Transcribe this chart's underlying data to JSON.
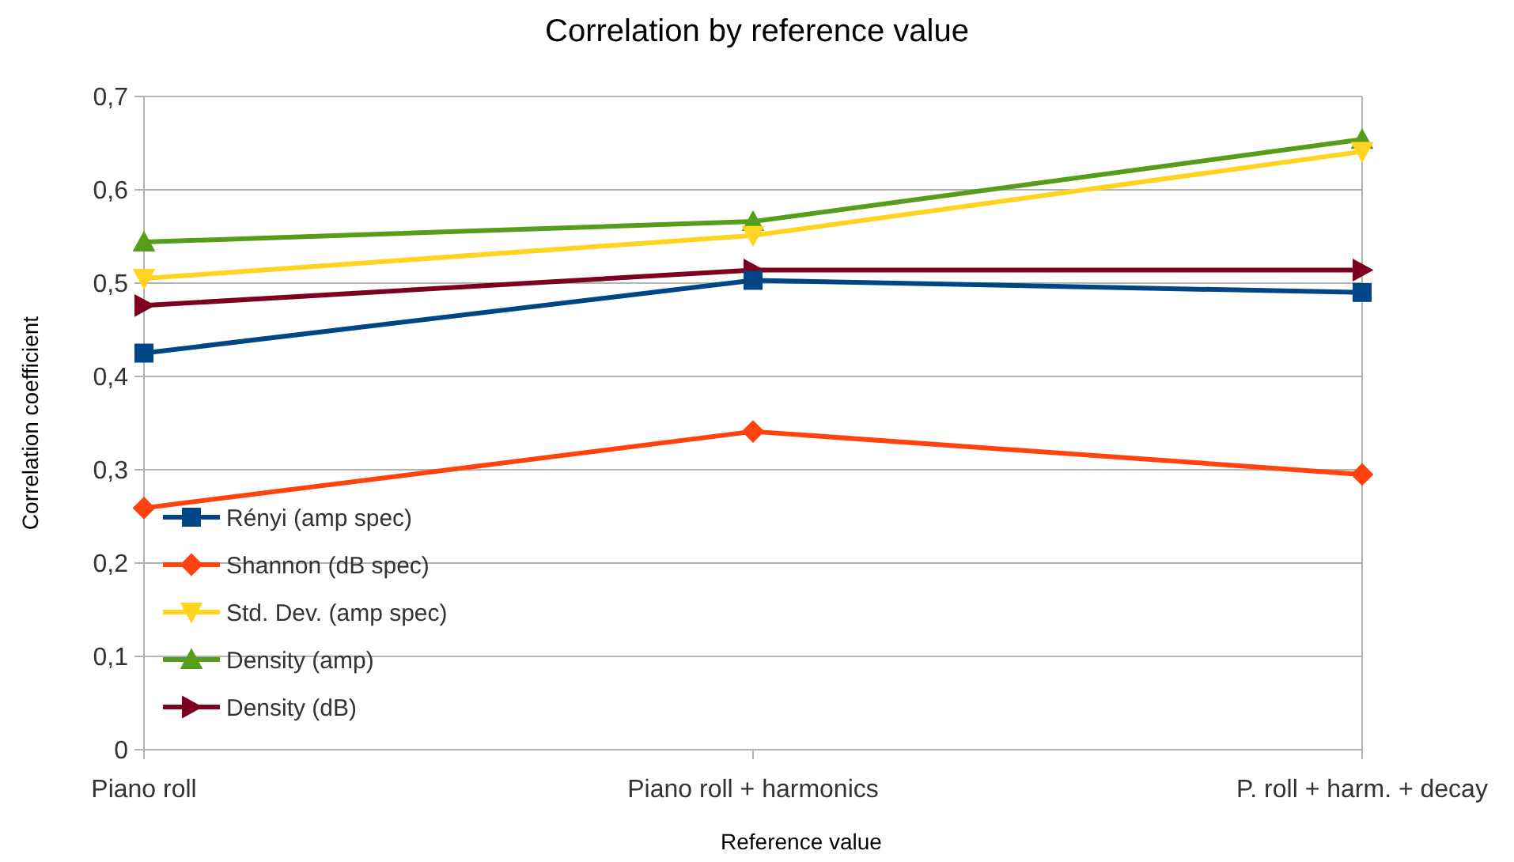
{
  "chart_data": {
    "type": "line",
    "title": "Correlation by reference value",
    "xlabel": "Reference value",
    "ylabel": "Correlation coefficient",
    "categories": [
      "Piano roll",
      "Piano roll + harmonics",
      "P. roll + harm. + decay"
    ],
    "ylim": [
      0,
      0.7
    ],
    "yticks": [
      {
        "value": 0,
        "label": "0"
      },
      {
        "value": 0.1,
        "label": "0,1"
      },
      {
        "value": 0.2,
        "label": "0,2"
      },
      {
        "value": 0.3,
        "label": "0,3"
      },
      {
        "value": 0.4,
        "label": "0,4"
      },
      {
        "value": 0.5,
        "label": "0,5"
      },
      {
        "value": 0.6,
        "label": "0,6"
      },
      {
        "value": 0.7,
        "label": "0,7"
      }
    ],
    "grid": "y",
    "legend": "bottom left",
    "series": [
      {
        "name": "Rényi (amp spec)",
        "color": "#004586",
        "marker": "square",
        "values": [
          0.425,
          0.503,
          0.49
        ]
      },
      {
        "name": "Shannon (dB spec)",
        "color": "#ff420e",
        "marker": "diamond",
        "values": [
          0.259,
          0.341,
          0.295
        ]
      },
      {
        "name": "Std. Dev. (amp spec)",
        "color": "#ffd320",
        "marker": "triangle-down",
        "values": [
          0.505,
          0.551,
          0.641
        ]
      },
      {
        "name": "Density (amp)",
        "color": "#579d1c",
        "marker": "triangle",
        "values": [
          0.544,
          0.566,
          0.654
        ]
      },
      {
        "name": "Density (dB)",
        "color": "#7e0021",
        "marker": "triangle-right",
        "values": [
          0.476,
          0.514,
          0.514
        ]
      }
    ]
  }
}
